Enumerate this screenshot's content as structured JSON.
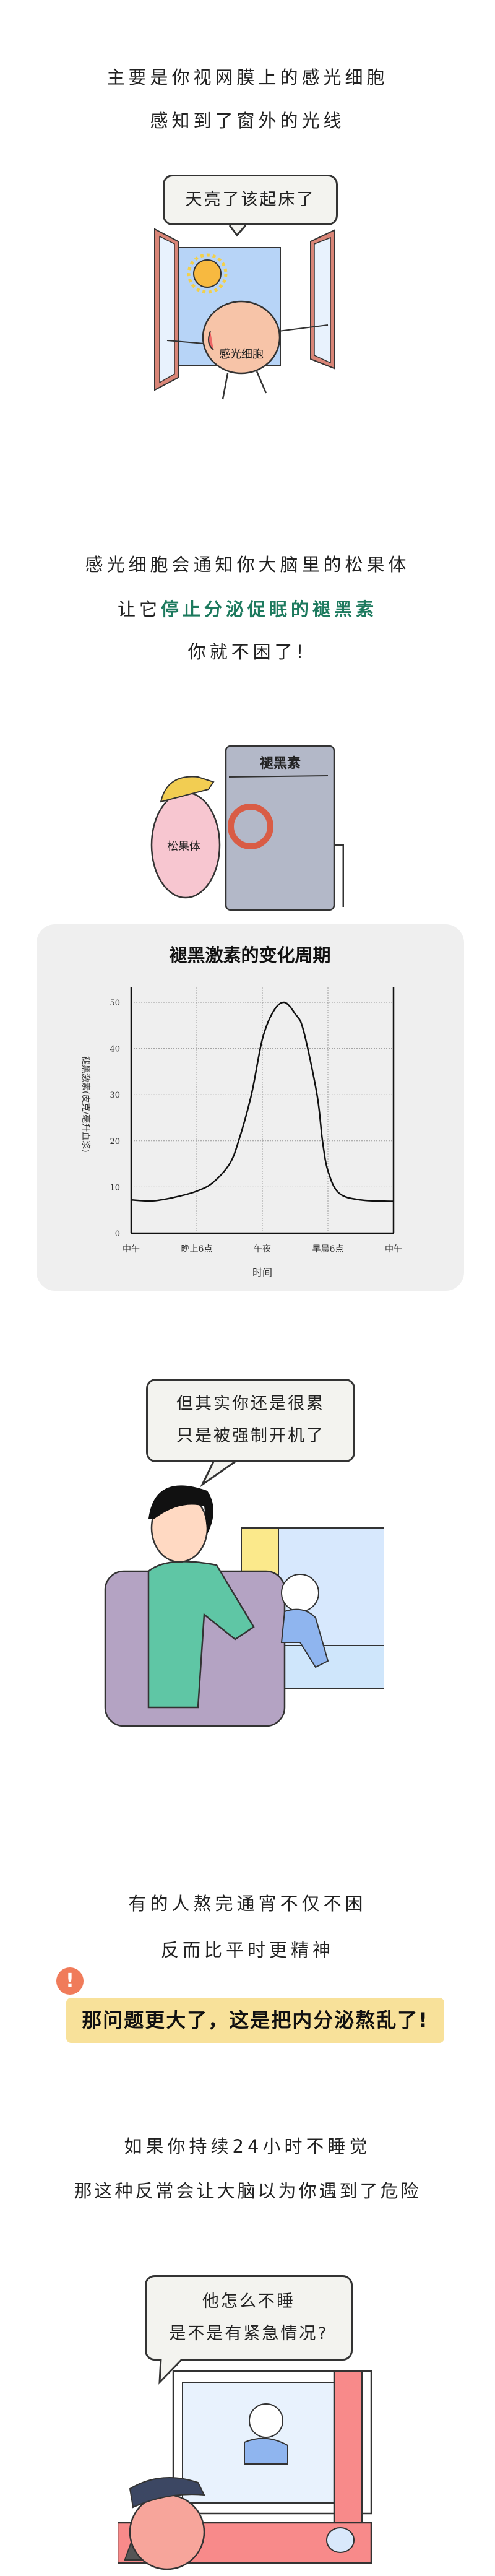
{
  "section1": {
    "lines": [
      "主要是你视网膜上的感光细胞",
      "感知到了窗外的光线"
    ],
    "bubble": "天亮了该起床了",
    "character_label": "感光细胞"
  },
  "section2": {
    "line1": "感光细胞会通知你大脑里的松果体",
    "line2_prefix": "让它",
    "line2_highlight": "停止分泌促眠的褪黑素",
    "line3": "你就不困了!",
    "tank_label": "褪黑素",
    "character_label": "松果体",
    "highlight_color": "#1d7a5e"
  },
  "chart_data": {
    "type": "line",
    "title": "褪黑激素的变化周期",
    "xlabel": "时间",
    "ylabel": "褪黑激素(皮克/毫升血浆)",
    "ylim": [
      0,
      50
    ],
    "yticks": [
      "0",
      "10",
      "20",
      "30",
      "40",
      "50"
    ],
    "xticks": [
      "中午",
      "晚上6点",
      "午夜",
      "早晨6点",
      "中午"
    ],
    "grid": true,
    "series": [
      {
        "points": [
          [
            "12:00",
            7.2
          ],
          [
            "14:00",
            7.0
          ],
          [
            "16:00",
            7.8
          ],
          [
            "18:00",
            9.1
          ],
          [
            "19:30",
            11
          ],
          [
            "21:00",
            15
          ],
          [
            "21:50",
            20
          ],
          [
            "23:00",
            30
          ],
          [
            "00:00",
            42
          ],
          [
            "01:00",
            48
          ],
          [
            "02:00",
            50
          ],
          [
            "03:00",
            47.5
          ],
          [
            "03:45",
            44
          ],
          [
            "05:00",
            30
          ],
          [
            "05:30",
            20
          ],
          [
            "06:00",
            13.5
          ],
          [
            "07:00",
            8.7
          ],
          [
            "09:00",
            7.2
          ],
          [
            "12:00",
            6.9
          ]
        ]
      }
    ]
  },
  "section3": {
    "bubble_lines": [
      "但其实你还是很累",
      "只是被强制开机了"
    ]
  },
  "section4": {
    "lines": [
      "有的人熬完通宵不仅不困",
      "反而比平时更精神"
    ],
    "callout": "那问题更大了，这是把内分泌熬乱了!",
    "alert_icon": "!",
    "callout_color": "#f8e19a",
    "alert_color": "#f07b5a"
  },
  "section5": {
    "lines": [
      "如果你持续24小时不睡觉",
      "那这种反常会让大脑以为你遇到了危险"
    ],
    "bubble_lines": [
      "他怎么不睡",
      "是不是有紧急情况?"
    ]
  }
}
